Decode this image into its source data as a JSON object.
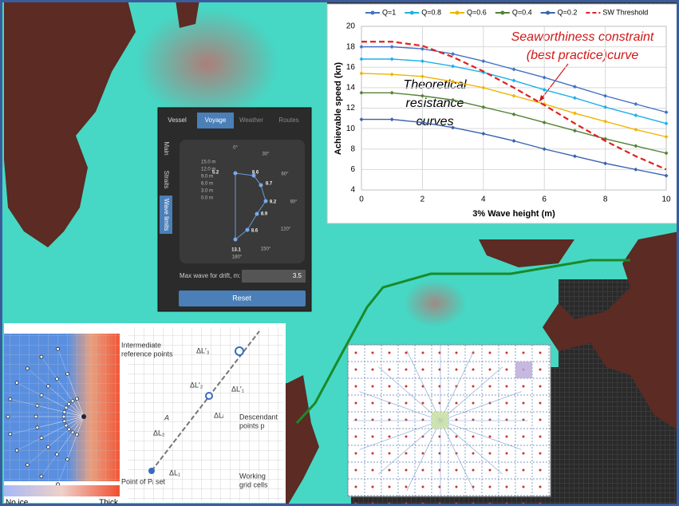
{
  "chart_data": {
    "type": "line",
    "xlabel": "3% Wave height (m)",
    "ylabel": "Achievable speed (kn)",
    "annotations": [
      "Seaworthiness constraint",
      "(best practice)curve",
      "Theoretical",
      "resistance",
      "curves"
    ],
    "x": [
      0,
      1,
      2,
      3,
      4,
      5,
      6,
      7,
      8,
      9,
      10
    ],
    "series": [
      {
        "name": "Q=1",
        "color": "#4472c4",
        "values": [
          18.0,
          18.0,
          17.8,
          17.3,
          16.6,
          15.8,
          15.0,
          14.1,
          13.2,
          12.4,
          11.6
        ]
      },
      {
        "name": "Q=0.8",
        "color": "#1fb0e8",
        "values": [
          16.8,
          16.8,
          16.6,
          16.1,
          15.5,
          14.7,
          13.8,
          13.0,
          12.1,
          11.3,
          10.5
        ]
      },
      {
        "name": "Q=0.6",
        "color": "#f0b400",
        "values": [
          15.4,
          15.3,
          15.1,
          14.6,
          14.0,
          13.2,
          12.4,
          11.5,
          10.7,
          9.9,
          9.2
        ]
      },
      {
        "name": "Q=0.4",
        "color": "#548235",
        "values": [
          13.5,
          13.5,
          13.2,
          12.8,
          12.1,
          11.4,
          10.6,
          9.8,
          9.0,
          8.3,
          7.6
        ]
      },
      {
        "name": "Q=0.2",
        "color": "#3a62b0",
        "values": [
          10.9,
          10.9,
          10.6,
          10.1,
          9.5,
          8.8,
          8.0,
          7.3,
          6.6,
          6.0,
          5.4
        ]
      },
      {
        "name": "SW Threshold",
        "color": "#e02020",
        "dashed": true,
        "values": [
          18.5,
          18.5,
          18.1,
          17.0,
          15.6,
          14.0,
          12.3,
          10.5,
          8.8,
          7.3,
          6.0
        ]
      }
    ],
    "xlim": [
      0,
      10
    ],
    "xticks": [
      0,
      2,
      4,
      6,
      8,
      10
    ],
    "ylim": [
      4,
      20
    ],
    "yticks": [
      4,
      6,
      8,
      10,
      12,
      14,
      16,
      18,
      20
    ],
    "grid": true,
    "legend": "top"
  },
  "vessel_panel": {
    "tabs": [
      "Vessel",
      "Voyage",
      "Weather",
      "Routes"
    ],
    "side_tabs": [
      "Main",
      "Straits",
      "Wave limits"
    ],
    "polar_angles": [
      "0°",
      "30°",
      "60°",
      "90°",
      "120°",
      "150°",
      "180°"
    ],
    "polar_scale": [
      "15.0 m",
      "12.0 m",
      "9.0 m",
      "6.0 m",
      "3.0 m",
      "0.0 m"
    ],
    "polar_values": [
      "5.2",
      "8.6",
      "8.7",
      "9.2",
      "8.9",
      "8.6",
      "13.1"
    ],
    "max_wave_label": "Max wave for drift, m:",
    "max_wave_value": "3.5",
    "reset_button": "Reset"
  },
  "grid_diagram": {
    "reference_label": [
      "Intermediate",
      "reference points"
    ],
    "descendant_label": [
      "Descendant",
      "points p"
    ],
    "working_label": [
      "Working",
      "grid cells"
    ],
    "start_label": "Point of Pᵢ set",
    "delta_labels": [
      "ΔL′₃",
      "ΔL′₂",
      "ΔL′₁",
      "ΔLᵢ",
      "ΔL₂",
      "ΔL₁",
      "A"
    ],
    "colorbar_labels": [
      "No ice",
      "Thick"
    ]
  }
}
